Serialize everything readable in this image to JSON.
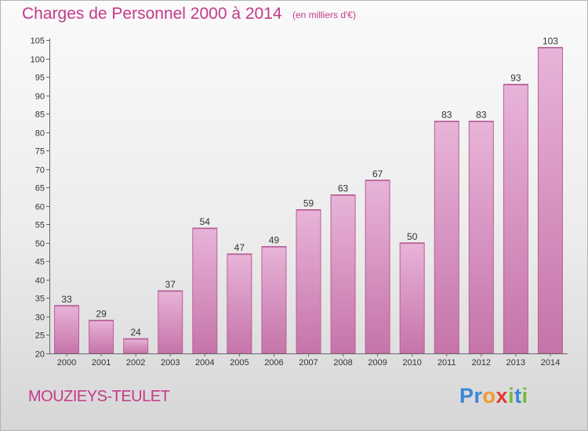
{
  "title": "Charges de Personnel 2000 à 2014",
  "unit_note": "(en milliers d'€)",
  "commune": "MOUZIEYS-TEULET",
  "brand": {
    "letters": [
      "P",
      "r",
      "o",
      "x",
      "i",
      "t",
      "i"
    ],
    "colors": [
      "#3a87d6",
      "#3a87d6",
      "#f29a2a",
      "#e63a2e",
      "#7ab83a",
      "#3a87d6",
      "#7ab83a"
    ]
  },
  "colors": {
    "bar_light": "#e8b4d8",
    "bar_dark": "#c574a9",
    "bar_edge": "#b85f98",
    "title": "#c43a8a"
  },
  "chart_data": {
    "type": "bar",
    "categories": [
      "2000",
      "2001",
      "2002",
      "2003",
      "2004",
      "2005",
      "2006",
      "2007",
      "2008",
      "2009",
      "2010",
      "2011",
      "2012",
      "2013",
      "2014"
    ],
    "values": [
      33,
      29,
      24,
      37,
      54,
      47,
      49,
      59,
      63,
      67,
      50,
      83,
      83,
      93,
      103
    ],
    "yticks": [
      20,
      25,
      30,
      35,
      40,
      45,
      50,
      55,
      60,
      65,
      70,
      75,
      80,
      85,
      90,
      95,
      100,
      105
    ],
    "ylim": [
      20,
      105
    ],
    "grid": false
  }
}
